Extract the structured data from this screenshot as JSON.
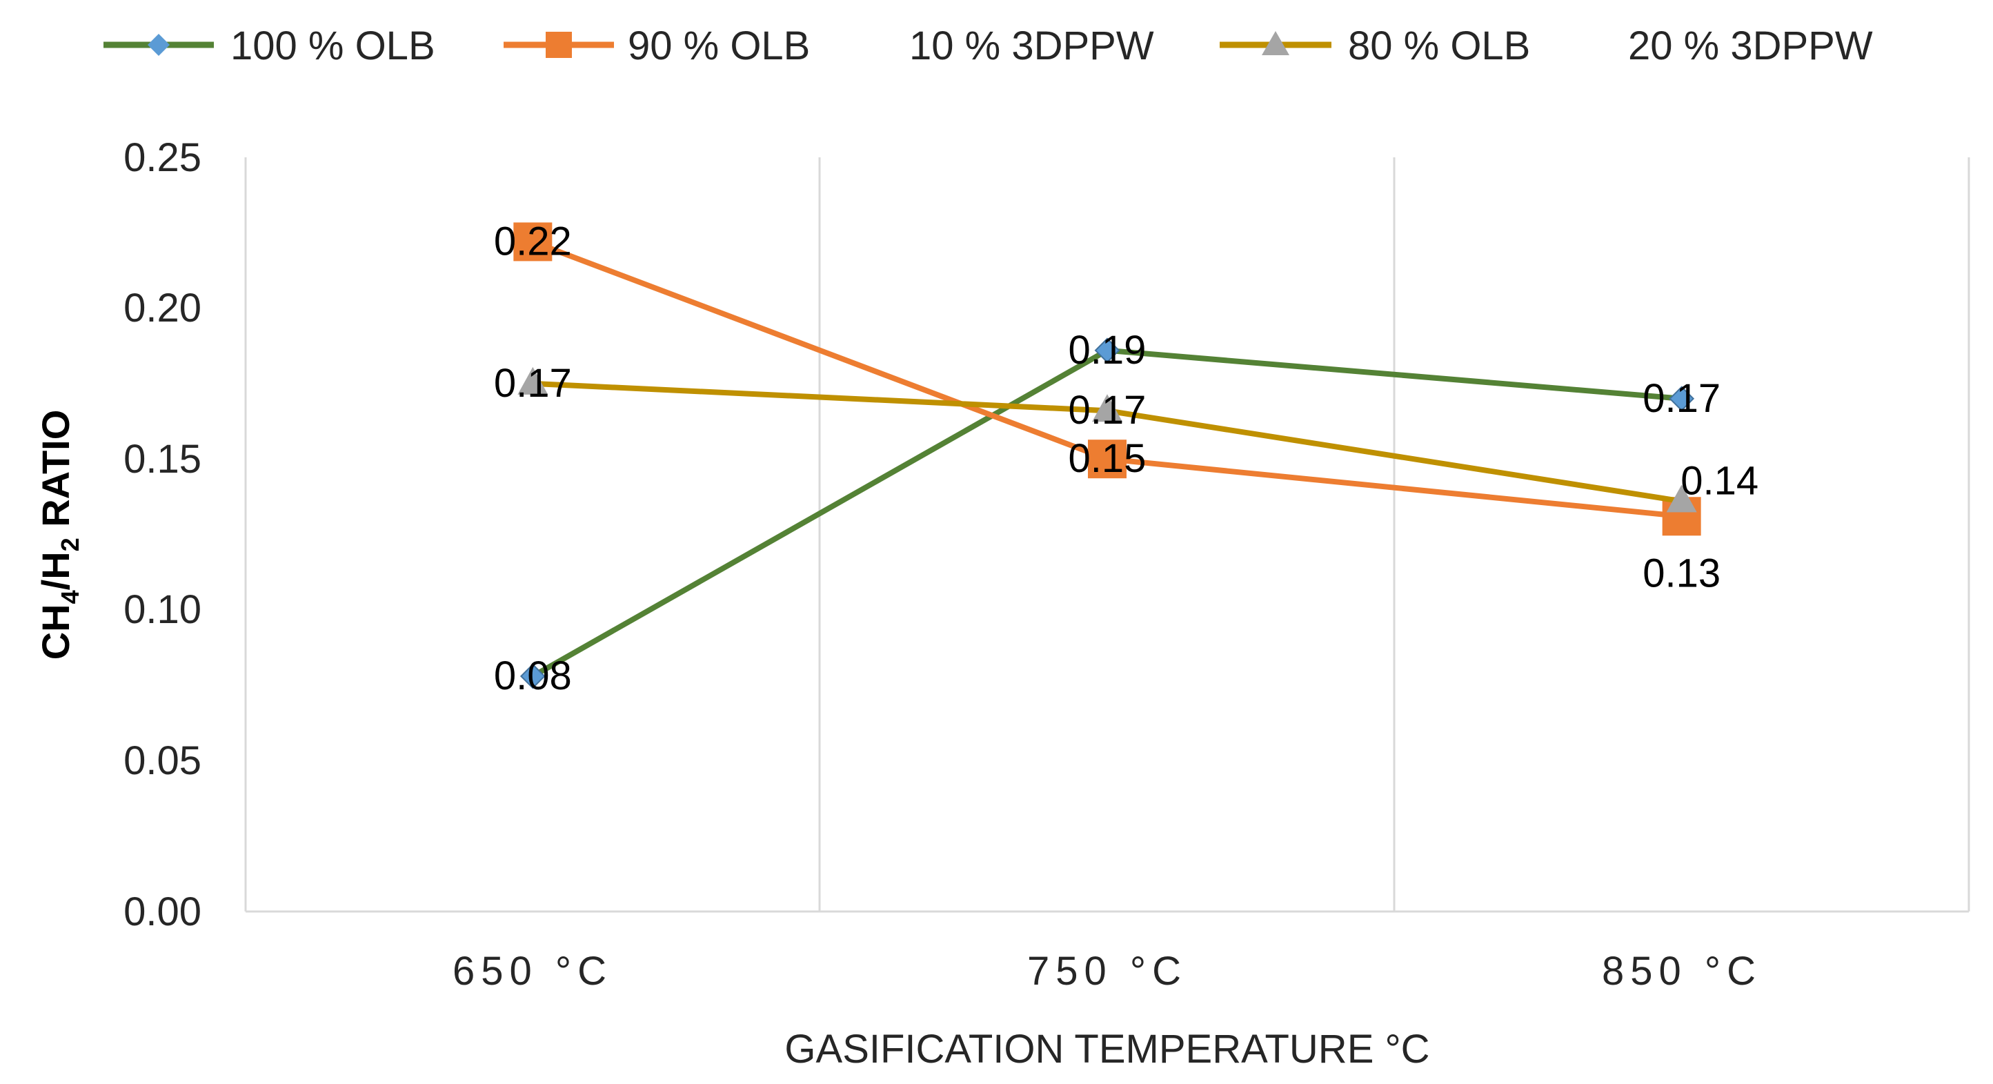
{
  "chart_data": {
    "type": "line",
    "title": "",
    "xlabel": "GASIFICATION TEMPERATURE °C",
    "ylabel": {
      "prefix": "CH",
      "sub1": "4",
      "middle": "/H",
      "sub2": "2",
      "suffix": " RATIO"
    },
    "categories": [
      "650 °C",
      "750 °C",
      "850 °C"
    ],
    "ylim": [
      0,
      0.25
    ],
    "yticks": [
      "0.00",
      "0.05",
      "0.10",
      "0.15",
      "0.20",
      "0.25"
    ],
    "ytick_values": [
      0,
      0.05,
      0.1,
      0.15,
      0.2,
      0.25
    ],
    "legend_position": "top",
    "gridlines": "vertical",
    "series": [
      {
        "name": "100 % OLB",
        "legend_parts": [
          "100 % OLB"
        ],
        "marker": "diamond",
        "color": "#548235",
        "marker_fill": "#5B9BD5",
        "values": [
          0.078,
          0.186,
          0.17
        ],
        "labels": [
          "0.08",
          "0.19",
          "0.17"
        ]
      },
      {
        "name": "90 % OLB 10 % 3DPPW",
        "legend_parts": [
          "90 % OLB",
          "10 % 3DPPW"
        ],
        "marker": "square",
        "color": "#ED7D31",
        "marker_fill": "#ED7D31",
        "values": [
          0.222,
          0.15,
          0.131
        ],
        "labels": [
          "0.22",
          "0.15",
          "0.13"
        ]
      },
      {
        "name": "80 % OLB 20 % 3DPPW",
        "legend_parts": [
          "80 % OLB",
          "20 % 3DPPW"
        ],
        "marker": "triangle",
        "color": "#BF9000",
        "marker_fill": "#A5A5A5",
        "values": [
          0.175,
          0.166,
          0.136
        ],
        "labels": [
          "0.17",
          "0.17",
          "0.14"
        ]
      }
    ]
  }
}
